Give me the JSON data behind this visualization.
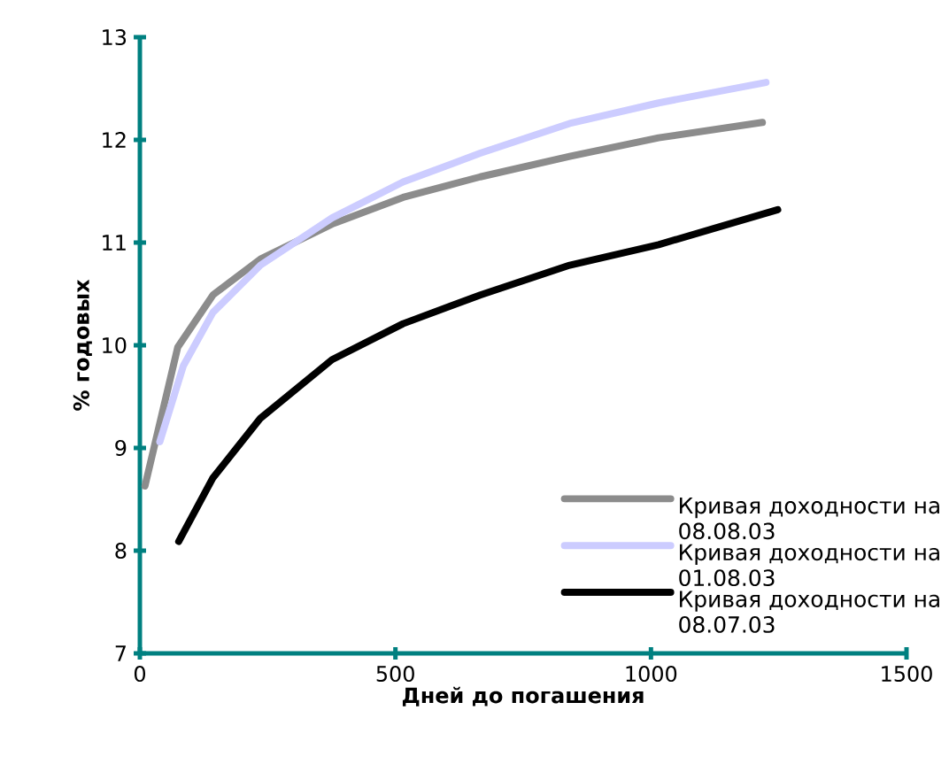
{
  "chart_data": {
    "type": "line",
    "xlabel": "Дней до погашения",
    "ylabel": "% годовых",
    "xlim": [
      0,
      1500
    ],
    "ylim": [
      7,
      13
    ],
    "xticks": [
      0,
      500,
      1000,
      1500
    ],
    "yticks": [
      7,
      8,
      9,
      10,
      11,
      12,
      13
    ],
    "grid": false,
    "legend": "bottom right",
    "marker": "none",
    "line_style": "solid",
    "series": [
      {
        "name": "Кривая доходности на 08.08.03",
        "color": "#8c8c8c",
        "x": [
          10,
          74,
          143,
          236,
          376,
          515,
          666,
          841,
          1015,
          1218
        ],
        "values": [
          8.63,
          9.98,
          10.49,
          10.84,
          11.18,
          11.44,
          11.64,
          11.84,
          12.02,
          12.17
        ]
      },
      {
        "name": "Кривая доходности на 01.08.03",
        "color": "#ccccff",
        "x": [
          39,
          85,
          143,
          236,
          376,
          515,
          666,
          841,
          1015,
          1225
        ],
        "values": [
          9.06,
          9.8,
          10.32,
          10.78,
          11.24,
          11.59,
          11.87,
          12.16,
          12.36,
          12.56
        ]
      },
      {
        "name": "Кривая доходности на 08.07.03",
        "color": "#000000",
        "x": [
          76,
          143,
          236,
          376,
          515,
          666,
          841,
          1015,
          1248
        ],
        "values": [
          8.09,
          8.71,
          9.29,
          9.86,
          10.21,
          10.49,
          10.78,
          10.98,
          11.32
        ]
      }
    ]
  }
}
